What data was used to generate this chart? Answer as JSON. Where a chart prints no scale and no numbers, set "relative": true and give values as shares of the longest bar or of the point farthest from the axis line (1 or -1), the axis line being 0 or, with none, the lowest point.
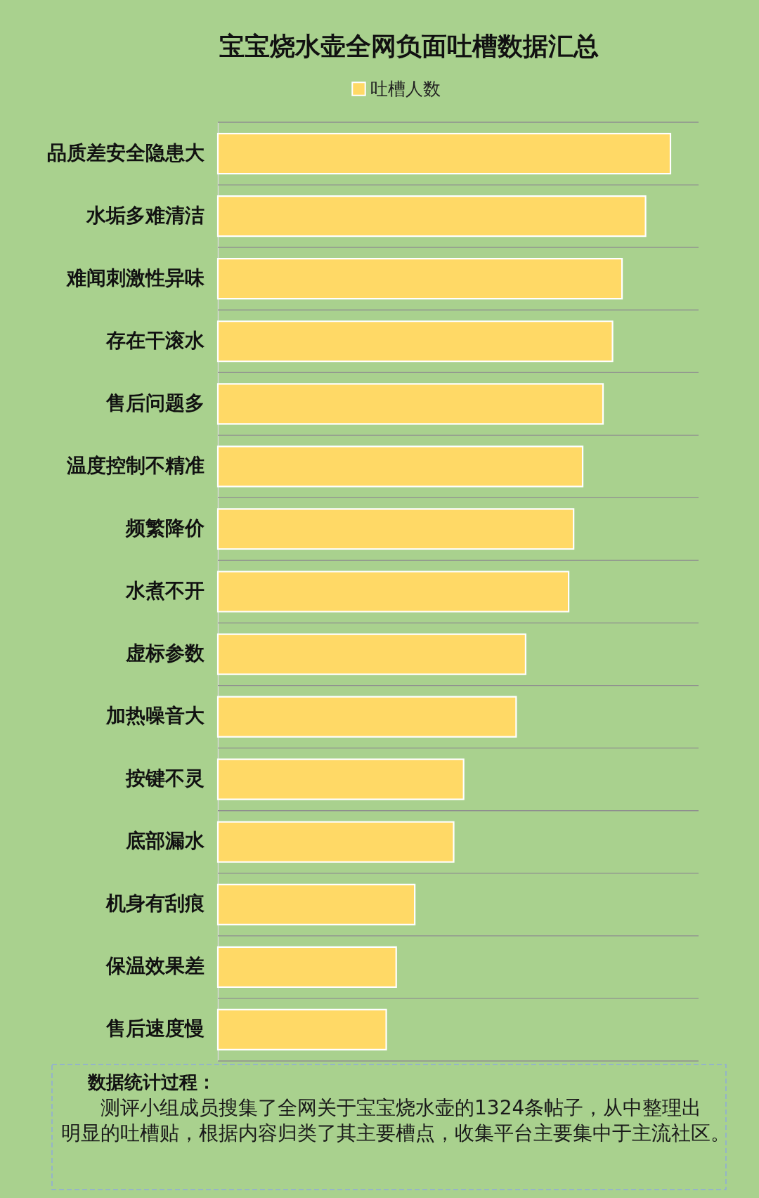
{
  "chart_data": {
    "type": "bar",
    "orientation": "horizontal",
    "relative": true,
    "title": "宝宝烧水壶全网负面吐槽数据汇总",
    "categories": [
      "品质差安全隐患大",
      "水垢多难清洁",
      "难闻刺激性异味",
      "存在干滚水",
      "售后问题多",
      "温度控制不精准",
      "频繁降价",
      "水煮不开",
      "虚标参数",
      "加热噪音大",
      "按键不灵",
      "底部漏水",
      "机身有刮痕",
      "保温效果差",
      "售后速度慢"
    ],
    "series": [
      {
        "name": "吐槽人数",
        "color": "#ffd966",
        "values": [
          1,
          0.945,
          0.893,
          0.872,
          0.851,
          0.806,
          0.786,
          0.775,
          0.68,
          0.659,
          0.543,
          0.521,
          0.435,
          0.394,
          0.372
        ]
      }
    ],
    "grid": "y",
    "legend": "top",
    "annotations": [
      "数据统计过程：",
      "测评小组成员搜集了全网关于宝宝烧水壶的1324条帖子，从中整理出明显的吐槽贴，根据内容归类了其主要槽点，收集平台主要集中于主流社区。"
    ]
  }
}
